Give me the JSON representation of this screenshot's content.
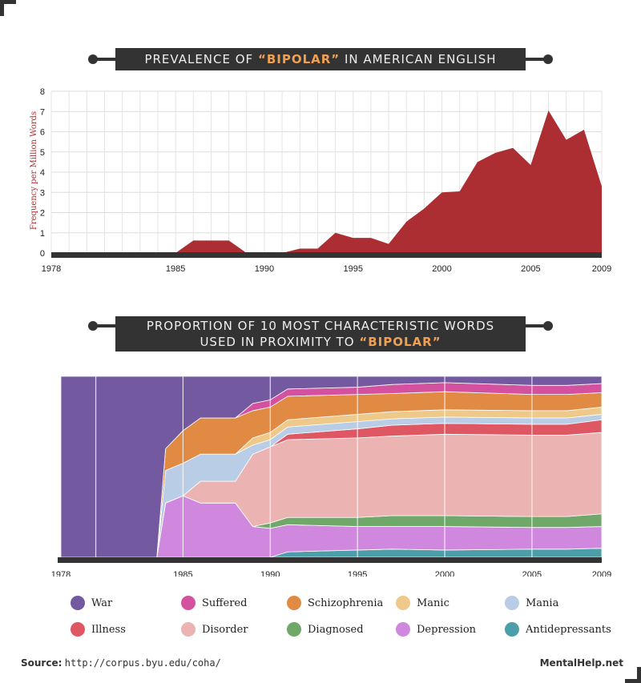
{
  "chart_data": [
    {
      "type": "area",
      "title_prefix": "PREVALENCE OF ",
      "title_highlight": "“BIPOLAR”",
      "title_suffix": " IN AMERICAN ENGLISH",
      "ylabel": "Frequency per Million Words",
      "xlim": [
        1978,
        2009
      ],
      "ylim": [
        0,
        8
      ],
      "yticks": [
        "0",
        "1",
        "2",
        "3",
        "4",
        "5",
        "6",
        "7",
        "8"
      ],
      "xticks": [
        "1978",
        "1985",
        "1990",
        "1995",
        "2000",
        "2005",
        "2009"
      ],
      "grid": true,
      "color": "#ac2e32",
      "series": [
        {
          "x": [
            1978,
            1984,
            1985,
            1986,
            1988,
            1989,
            1990,
            1991,
            1992,
            1993,
            1994,
            1995,
            1996,
            1997,
            1998,
            1999,
            2000,
            2001,
            2002,
            2003,
            2004,
            2005,
            2006,
            2007,
            2008,
            2009
          ],
          "values": [
            0,
            0,
            0,
            0.62,
            0.62,
            0,
            0,
            0,
            0.22,
            0.22,
            1.0,
            0.75,
            0.75,
            0.45,
            1.55,
            2.2,
            3.0,
            3.05,
            4.5,
            4.95,
            5.2,
            4.35,
            7.05,
            5.6,
            6.1,
            3.3
          ]
        }
      ]
    },
    {
      "type": "area",
      "stacked": "percent",
      "title_line1": "PROPORTION OF 10 MOST CHARACTERISTIC WORDS",
      "title_line2_prefix": "USED IN PROXIMITY TO ",
      "title_line2_highlight": "“BIPOLAR”",
      "xlim": [
        1978,
        2009
      ],
      "xticks": [
        "1978",
        "1985",
        "1990",
        "1995",
        "2000",
        "2005",
        "2009"
      ],
      "x": [
        1978,
        1983.5,
        1984,
        1985,
        1986,
        1988,
        1989,
        1990,
        1991,
        1995,
        1997,
        2000,
        2005,
        2007,
        2009
      ],
      "series": [
        {
          "name": "Antidepressants",
          "color": "#4c9fa8",
          "values": [
            0,
            0,
            0,
            0,
            0,
            0,
            0,
            0,
            3,
            4,
            4.5,
            4,
            4.5,
            4.5,
            5
          ]
        },
        {
          "name": "Depression",
          "color": "#d088de",
          "values": [
            0,
            0,
            30,
            34,
            30,
            30,
            17,
            16,
            15,
            13,
            12.5,
            13,
            12,
            12,
            12
          ]
        },
        {
          "name": "Diagnosed",
          "color": "#6fa868",
          "values": [
            0,
            0,
            0,
            0,
            0,
            0,
            0,
            3,
            4,
            5,
            6,
            6,
            6,
            6,
            7
          ]
        },
        {
          "name": "Disorder",
          "color": "#ecb3b3",
          "values": [
            0,
            0,
            0,
            0,
            12,
            12,
            40,
            42,
            43,
            44,
            44,
            45,
            45,
            45,
            45
          ]
        },
        {
          "name": "Illness",
          "color": "#df5762",
          "values": [
            0,
            0,
            0,
            0,
            0,
            0,
            0,
            0,
            3,
            5,
            6,
            6,
            6,
            6,
            7
          ]
        },
        {
          "name": "Mania",
          "color": "#b9cde6",
          "values": [
            0,
            0,
            18,
            18,
            15,
            15,
            5,
            4,
            4,
            4,
            3.5,
            3.5,
            3.5,
            3.5,
            3
          ]
        },
        {
          "name": "Manic",
          "color": "#eec98a",
          "values": [
            0,
            0,
            0,
            0,
            0,
            0,
            4,
            4,
            4,
            4,
            4,
            4,
            4,
            4,
            4
          ]
        },
        {
          "name": "Schizophrenia",
          "color": "#e08a44",
          "values": [
            0,
            0,
            12,
            18,
            20,
            20,
            15,
            14,
            13,
            11,
            10,
            10,
            9,
            9,
            8
          ]
        },
        {
          "name": "Suffered",
          "color": "#d4519f",
          "values": [
            0,
            0,
            0,
            0,
            0,
            0,
            4,
            4,
            4,
            4,
            5,
            5,
            5,
            5,
            5
          ]
        },
        {
          "name": "War",
          "color": "#7259a0",
          "values": [
            100,
            100,
            40,
            30,
            23,
            23,
            15,
            13,
            7,
            6,
            4.5,
            3.5,
            5,
            5,
            4
          ]
        }
      ]
    }
  ],
  "legend": [
    {
      "name": "War",
      "color": "#7259a0"
    },
    {
      "name": "Suffered",
      "color": "#d4519f"
    },
    {
      "name": "Schizophrenia",
      "color": "#e08a44"
    },
    {
      "name": "Manic",
      "color": "#eec98a"
    },
    {
      "name": "Mania",
      "color": "#b9cde6"
    },
    {
      "name": "Illness",
      "color": "#df5762"
    },
    {
      "name": "Disorder",
      "color": "#ecb3b3"
    },
    {
      "name": "Diagnosed",
      "color": "#6fa868"
    },
    {
      "name": "Depression",
      "color": "#d088de"
    },
    {
      "name": "Antidepressants",
      "color": "#4c9fa8"
    }
  ],
  "footer": {
    "source_label": "Source:",
    "source_url": "http://corpus.byu.edu/coha/",
    "brand": "MentalHelp.net"
  }
}
